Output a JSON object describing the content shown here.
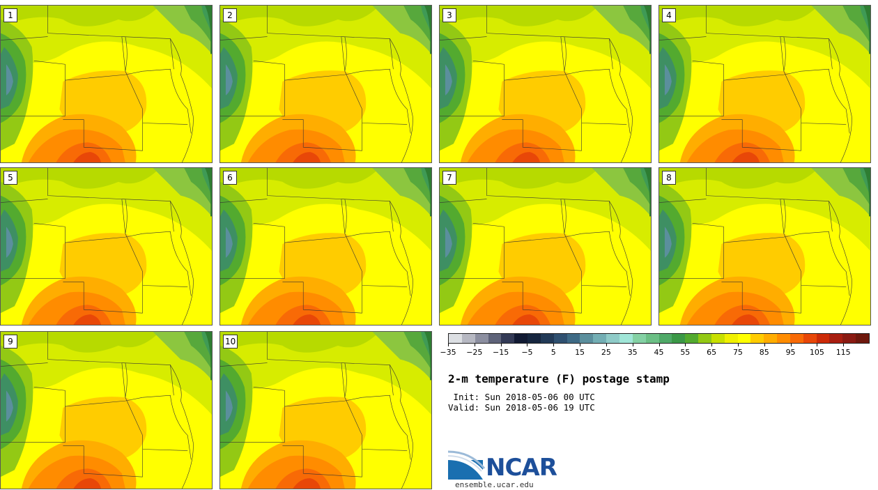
{
  "title": "2-m temperature (F) postage stamp",
  "init": " Init: Sun 2018-05-06 00 UTC",
  "valid": "Valid: Sun 2018-05-06 19 UTC",
  "site": "ensemble.ucar.edu",
  "logo": {
    "text": "NCAR"
  },
  "members": [
    "1",
    "2",
    "3",
    "4",
    "5",
    "6",
    "7",
    "8",
    "9",
    "10"
  ],
  "colorbar": {
    "colors": [
      "#dcdfe3",
      "#b6b8c2",
      "#8c8fa0",
      "#5e6379",
      "#333a56",
      "#111a33",
      "#16263f",
      "#223a57",
      "#2f5070",
      "#3e6a85",
      "#5b8f9d",
      "#73aeb4",
      "#8fcbc8",
      "#a0e6d8",
      "#84d1a4",
      "#6bbf85",
      "#4fa968",
      "#3b9847",
      "#53aa2f",
      "#93c914",
      "#c8e000",
      "#f0f000",
      "#ffff00",
      "#ffcc00",
      "#ffad00",
      "#ff8c00",
      "#f86a06",
      "#e84708",
      "#cc2a08",
      "#a81e10",
      "#8a1a12",
      "#6e180d"
    ],
    "ticks": [
      "-35",
      "-25",
      "-15",
      "-5",
      "5",
      "15",
      "25",
      "35",
      "45",
      "55",
      "65",
      "75",
      "85",
      "95",
      "105",
      "115"
    ]
  }
}
